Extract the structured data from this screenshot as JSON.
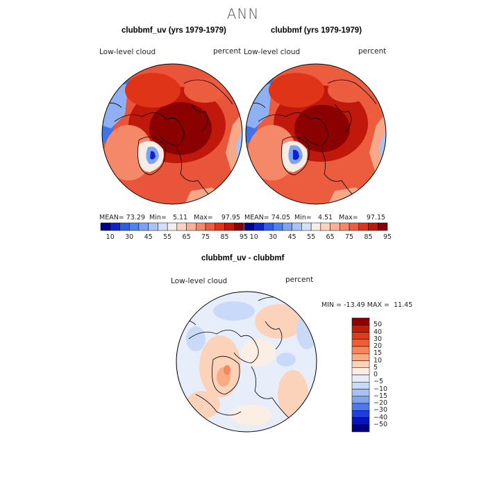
{
  "title": "ANN",
  "panels": [
    {
      "title": "clubbmf_uv (yrs 1979-1979)",
      "left_label": "Low-level cloud",
      "right_label": "percent",
      "stats": {
        "mean_label": "MEAN=",
        "mean": "73.29",
        "min_label": "Min=",
        "min": "5.11",
        "max_label": "Max=",
        "max": "97.95"
      }
    },
    {
      "title": "clubbmf (yrs 1979-1979)",
      "left_label": "Low-level cloud",
      "right_label": "percent",
      "stats": {
        "mean_label": "MEAN=",
        "mean": "74.05",
        "min_label": "Min=",
        "min": "4.51",
        "max_label": "Max=",
        "max": "97.15"
      }
    }
  ],
  "colorbar_top": {
    "colors": [
      "#00008b",
      "#0f23c8",
      "#2f5ee6",
      "#4f82ef",
      "#7da3f3",
      "#a8c3f6",
      "#d2e0fa",
      "#f8ede4",
      "#fbd2bd",
      "#f9b096",
      "#f48868",
      "#ec5c3e",
      "#df3418",
      "#c0180b",
      "#8b0000"
    ],
    "tick_labels": [
      "10",
      "30",
      "45",
      "55",
      "65",
      "75",
      "85",
      "95"
    ]
  },
  "difference": {
    "title": "clubbmf_uv - clubbmf",
    "left_label": "Low-level cloud",
    "right_label": "percent",
    "range_text": "MIN = -13.49 MAX =  11.45",
    "colors": [
      "#8b0000",
      "#c41a0a",
      "#e03a18",
      "#f25c30",
      "#f7875a",
      "#f9ab85",
      "#fbd3bb",
      "#fbeee4",
      "#e7eefa",
      "#c9daf8",
      "#a6c2f4",
      "#7ea3f0",
      "#4e78eb",
      "#1f3ee0",
      "#0a14b8",
      "#000080"
    ],
    "tick_labels": [
      "50",
      "40",
      "30",
      "20",
      "15",
      "10",
      "5",
      "0",
      "−5",
      "−10",
      "−15",
      "−20",
      "−30",
      "−40",
      "−50"
    ]
  }
}
